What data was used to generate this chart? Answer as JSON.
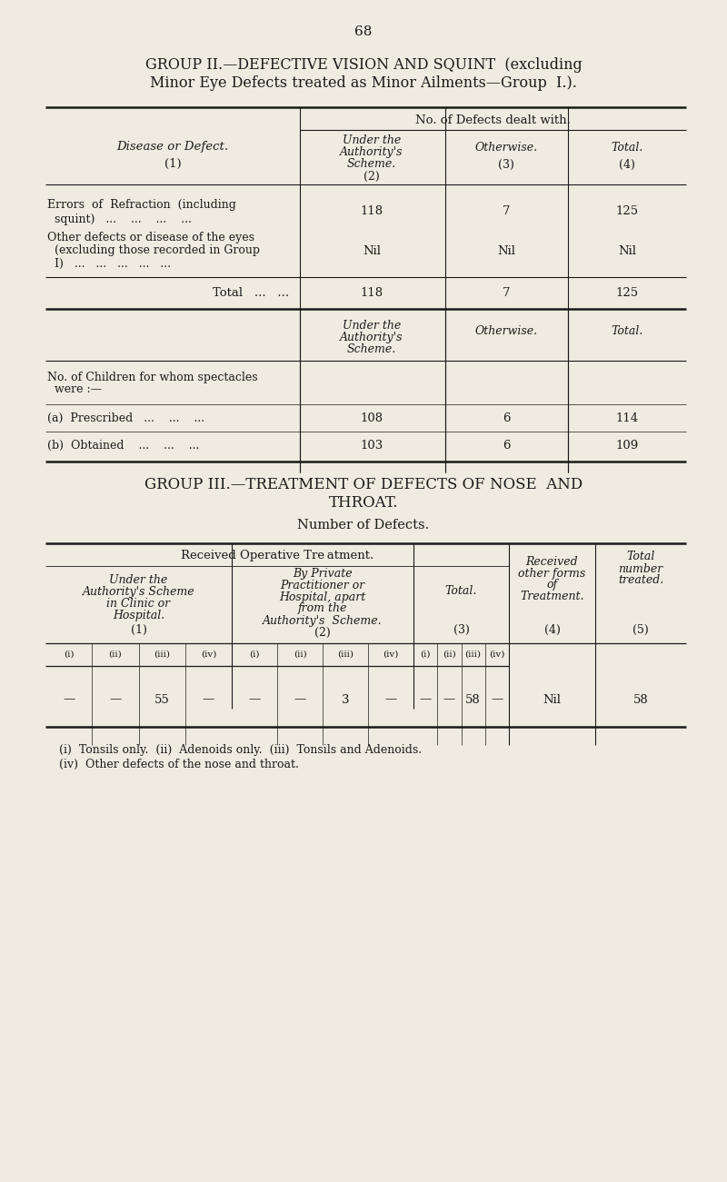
{
  "bg_color": "#f0ebe0",
  "text_color": "#1a1a1a",
  "page_number": "68",
  "group2_title_line1": "GROUP II.—DEFECTIVE VISION AND SQUINT  (excluding",
  "group2_title_line2": "Minor Eye Defects treated as Minor Ailments—Group  I.).",
  "group2_col_header": "No. of Defects dealt with.",
  "footnote_line1": "(i)  Tonsils only.  (ii)  Adenoids only.  (iii)  Tonsils and Adenoids.",
  "footnote_line2": "(iv)  Other defects of the nose and throat.",
  "group3_title_line1": "GROUP III.—TREATMENT OF DEFECTS OF NOSE  AND",
  "group3_title_line2": "THROAT.",
  "group3_subtitle": "Number of Defects.",
  "group3_op_header": "Received Operative Tre atment."
}
